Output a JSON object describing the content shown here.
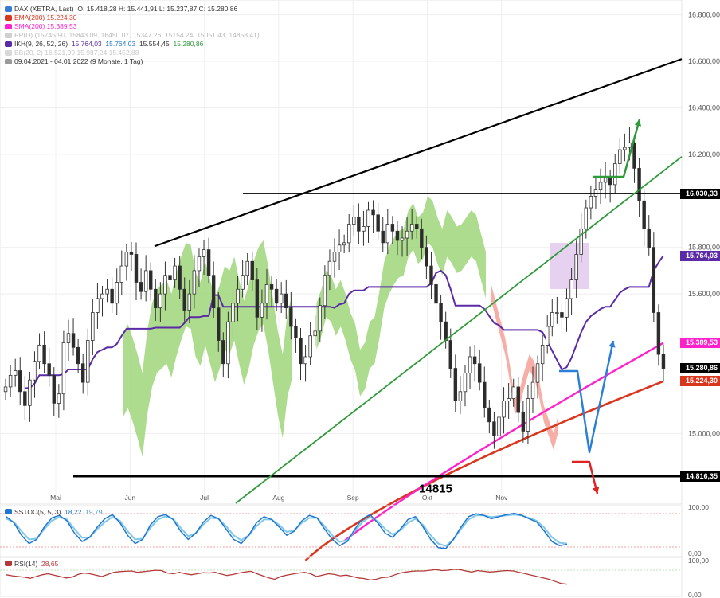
{
  "legend": {
    "title": "DAX (XETRA, Last)",
    "ohlc": "O: 15.418,28  H: 15.441,91  L: 15.237,87  C: 15.280,86",
    "ema": "EMA(200)  15.224,30",
    "sma": "SMA(200)  15.389,53",
    "pp": "PP(D)  (15745.90, 15843.09, 16450.07, 15347.26, 15154.24, 15051.43, 14858.41)",
    "ikh_name": "IKH(9, 26, 52, 26)",
    "ikh_v1": "15.764,03",
    "ikh_v2": "15.764,03",
    "ikh_v3": "15.554,45",
    "ikh_v4": "15.280,86",
    "bb": "BB(20, 2)  16.521,99  15.987,24  15.452,88",
    "range": "09.04.2021 - 04.01.2022  (9 Monate, 1 Tag)"
  },
  "colors": {
    "bull": "#ffffff",
    "bear": "#2b2b2b",
    "ema": "#d9361e",
    "sma": "#ff22cc",
    "kijun": "#5b2aa6",
    "cloud_green": "#9fd67a",
    "cloud_red": "#f4a098",
    "trend_black": "#000000",
    "trend_green": "#2f9a3a",
    "arrow_green": "#2f9a3a",
    "arrow_blue": "#2b7fd6",
    "arrow_red": "#e12020",
    "stoch_fast": "#1f77d0",
    "stoch_slow": "#82c8e6",
    "rsi": "#b33a3a"
  },
  "chart_data": {
    "type": "candlestick",
    "title": "DAX (XETRA, Last)",
    "y_axis": {
      "ylim": [
        14700,
        16850
      ],
      "ticks": [
        "16.800,00",
        "16.600,00",
        "16.400,00",
        "16.200,00",
        "15.800,00",
        "15.600,00",
        "15.000,00"
      ]
    },
    "x_axis": {
      "labels": [
        "Mai",
        "Jun",
        "Jul",
        "Aug",
        "Sep",
        "Okt",
        "Nov"
      ]
    },
    "price_tags": [
      {
        "label": "16.030,33",
        "value": 16030.33,
        "bg": "#000000"
      },
      {
        "label": "15.764,03",
        "value": 15764.03,
        "bg": "#5b2aa6"
      },
      {
        "label": "15.389,53",
        "value": 15389.53,
        "bg": "#ff22cc"
      },
      {
        "label": "15.280,86",
        "value": 15280.86,
        "bg": "#000000"
      },
      {
        "label": "15.224,30",
        "value": 15224.3,
        "bg": "#d9361e"
      },
      {
        "label": "14.816,35",
        "value": 14816.35,
        "bg": "#000000"
      }
    ],
    "horizontal_levels": [
      16030.33,
      14816.35
    ],
    "annotations": [
      {
        "text": "14815",
        "value": 14815
      }
    ],
    "close_series": [
      15200,
      15250,
      15270,
      15180,
      15120,
      15230,
      15310,
      15380,
      15300,
      15250,
      15130,
      15170,
      15390,
      15430,
      15370,
      15300,
      15220,
      15400,
      15520,
      15580,
      15600,
      15620,
      15560,
      15650,
      15720,
      15780,
      15770,
      15650,
      15610,
      15700,
      15620,
      15540,
      15600,
      15680,
      15660,
      15720,
      15620,
      15530,
      15600,
      15700,
      15760,
      15790,
      15680,
      15540,
      15400,
      15300,
      15480,
      15560,
      15620,
      15680,
      15740,
      15660,
      15500,
      15560,
      15640,
      15620,
      15560,
      15600,
      15540,
      15460,
      15410,
      15300,
      15330,
      15420,
      15440,
      15550,
      15680,
      15740,
      15780,
      15810,
      15820,
      15900,
      15930,
      15870,
      15890,
      15960,
      15940,
      15870,
      15820,
      15900,
      15870,
      15830,
      15840,
      15870,
      15900,
      15880,
      15800,
      15720,
      15640,
      15560,
      15480,
      15400,
      15280,
      15140,
      15180,
      15260,
      15330,
      15300,
      15220,
      15110,
      15050,
      14990,
      15070,
      15140,
      15150,
      15200,
      15090,
      15010,
      15150,
      15220,
      15300,
      15380,
      15460,
      15520,
      15520,
      15500,
      15580,
      15660,
      15770,
      15880,
      15970,
      16020,
      16050,
      16080,
      16100,
      16070,
      16160,
      16220,
      16230,
      16250,
      16140,
      16000,
      15880,
      15800,
      15520,
      15340,
      15280
    ],
    "ema200": [
      15224.3
    ],
    "sma200": [
      15389.53
    ]
  },
  "stoch": {
    "label": "SSTOC(5, 5, 3)",
    "v1": "18,22",
    "v2": "19,79",
    "ticks": [
      "100,00",
      "0,00"
    ],
    "series_fast": [
      85,
      70,
      40,
      20,
      30,
      60,
      82,
      88,
      75,
      45,
      25,
      35,
      60,
      80,
      90,
      70,
      40,
      20,
      30,
      65,
      85,
      90,
      78,
      50,
      30,
      45,
      72,
      88,
      80,
      55,
      30,
      20,
      40,
      70,
      85,
      78,
      60,
      40,
      50,
      75,
      88,
      82,
      55,
      30,
      15,
      25,
      55,
      80,
      90,
      70,
      45,
      35,
      55,
      78,
      85,
      60,
      30,
      10,
      8,
      30,
      60,
      85,
      92,
      88,
      80,
      85,
      90,
      93,
      88,
      80,
      72,
      50,
      25,
      15,
      18
    ],
    "series_slow": [
      80,
      72,
      50,
      30,
      32,
      55,
      75,
      84,
      78,
      55,
      34,
      35,
      55,
      72,
      84,
      75,
      50,
      30,
      32,
      58,
      78,
      86,
      80,
      58,
      38,
      45,
      66,
      82,
      80,
      62,
      40,
      28,
      40,
      62,
      78,
      78,
      65,
      48,
      52,
      70,
      82,
      82,
      62,
      40,
      24,
      28,
      50,
      72,
      84,
      74,
      55,
      42,
      52,
      70,
      80,
      65,
      40,
      20,
      14,
      30,
      55,
      78,
      88,
      88,
      84,
      86,
      88,
      90,
      88,
      82,
      75,
      58,
      35,
      22,
      20
    ]
  },
  "rsi": {
    "label": "RSI(14)",
    "value": "28,65",
    "ticks": [
      "100,00",
      "0,00"
    ],
    "series": [
      55,
      52,
      50,
      48,
      45,
      50,
      55,
      58,
      54,
      50,
      46,
      48,
      56,
      60,
      58,
      54,
      50,
      56,
      62,
      64,
      65,
      66,
      62,
      64,
      66,
      68,
      67,
      60,
      58,
      62,
      58,
      55,
      58,
      61,
      60,
      62,
      57,
      53,
      56,
      60,
      63,
      65,
      58,
      52,
      46,
      42,
      50,
      54,
      57,
      60,
      62,
      58,
      50,
      54,
      58,
      56,
      52,
      54,
      50,
      46,
      44,
      40,
      42,
      47,
      48,
      54,
      60,
      63,
      65,
      66,
      66,
      68,
      70,
      67,
      68,
      71,
      70,
      66,
      63,
      67,
      65,
      63,
      64,
      66,
      67,
      66,
      62,
      58,
      54,
      50,
      46,
      42,
      36,
      30,
      28
    ]
  }
}
